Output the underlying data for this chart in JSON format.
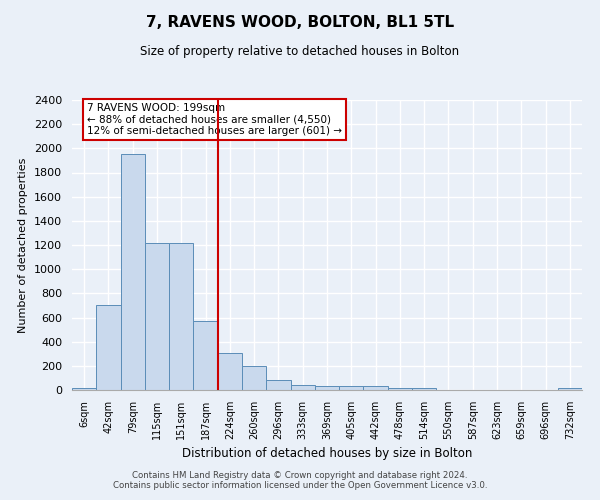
{
  "title": "7, RAVENS WOOD, BOLTON, BL1 5TL",
  "subtitle": "Size of property relative to detached houses in Bolton",
  "xlabel": "Distribution of detached houses by size in Bolton",
  "ylabel": "Number of detached properties",
  "bar_labels": [
    "6sqm",
    "42sqm",
    "79sqm",
    "115sqm",
    "151sqm",
    "187sqm",
    "224sqm",
    "260sqm",
    "296sqm",
    "333sqm",
    "369sqm",
    "405sqm",
    "442sqm",
    "478sqm",
    "514sqm",
    "550sqm",
    "587sqm",
    "623sqm",
    "659sqm",
    "696sqm",
    "732sqm"
  ],
  "bar_values": [
    20,
    700,
    1950,
    1220,
    1220,
    570,
    310,
    200,
    80,
    40,
    30,
    30,
    30,
    20,
    15,
    0,
    0,
    0,
    0,
    0,
    20
  ],
  "bar_color": "#c9d9ed",
  "bar_edge_color": "#5b8db8",
  "ylim": [
    0,
    2400
  ],
  "yticks": [
    0,
    200,
    400,
    600,
    800,
    1000,
    1200,
    1400,
    1600,
    1800,
    2000,
    2200,
    2400
  ],
  "property_line_x": 5.5,
  "property_line_color": "#cc0000",
  "annotation_text": "7 RAVENS WOOD: 199sqm\n← 88% of detached houses are smaller (4,550)\n12% of semi-detached houses are larger (601) →",
  "annotation_box_color": "#ffffff",
  "annotation_box_edge_color": "#cc0000",
  "footer_text": "Contains HM Land Registry data © Crown copyright and database right 2024.\nContains public sector information licensed under the Open Government Licence v3.0.",
  "bg_color": "#eaf0f8",
  "grid_color": "#ffffff"
}
